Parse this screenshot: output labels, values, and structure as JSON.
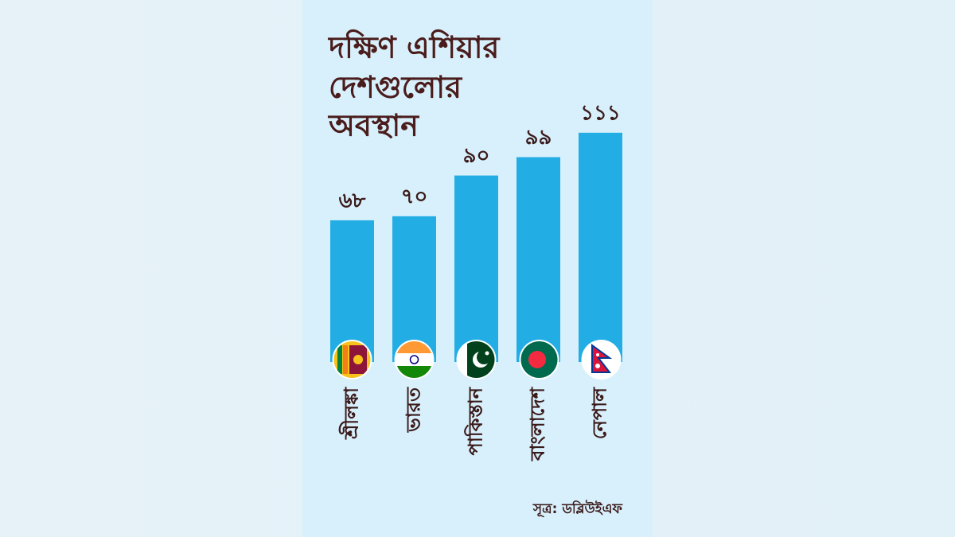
{
  "chart_data": {
    "type": "bar",
    "title": [
      "দক্ষিণ এশিয়ার",
      "দেশগুলোর",
      "অবস্থান"
    ],
    "categories": [
      "শ্রীলঙ্কা",
      "ভারত",
      "পাকিস্তান",
      "বাংলাদেশ",
      "নেপাল"
    ],
    "values": [
      68,
      70,
      90,
      99,
      111
    ],
    "value_labels": [
      "৬৮",
      "৭০",
      "৯০",
      "৯৯",
      "১১১"
    ],
    "color": "#22ade4",
    "source": "সূত্র: ডব্লিউইএফ"
  }
}
